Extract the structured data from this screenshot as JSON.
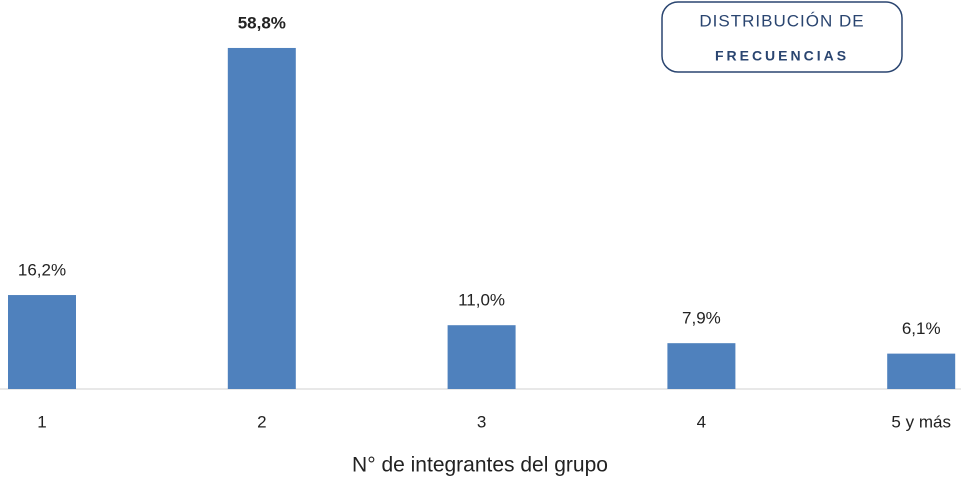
{
  "chart_data": {
    "type": "bar",
    "categories": [
      "1",
      "2",
      "3",
      "4",
      "5 y más"
    ],
    "values": [
      16.2,
      58.8,
      11.0,
      7.9,
      6.1
    ],
    "value_labels": [
      "16,2%",
      "58,8%",
      "11,0%",
      "7,9%",
      "6,1%"
    ],
    "color": "#4f81bd",
    "ylim": [
      0,
      60
    ],
    "x_label": "N° de integrantes del grupo",
    "annotations": [
      "DISTRIBUCIÓN DE",
      "FRECUENCIAS"
    ]
  }
}
